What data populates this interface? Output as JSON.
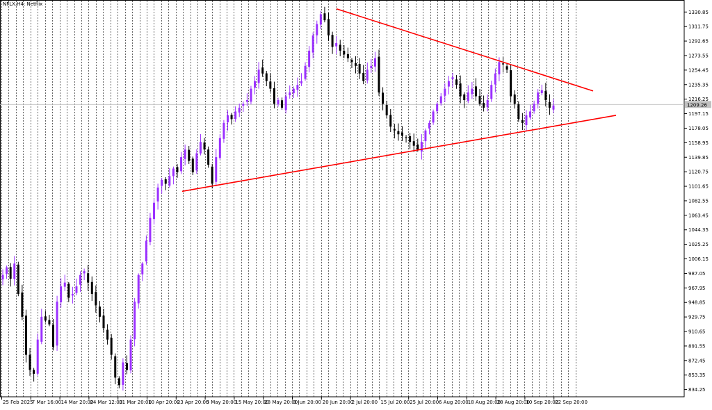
{
  "symbol": "NFLX,H4:",
  "symbol_desc": "Netflix",
  "colors": {
    "bull": "#9b30ff",
    "bear": "#000000",
    "trendline": "#ff0000",
    "grid": "#000000",
    "price_line": "#c0c0c0",
    "price_tag_bg": "#c0c0c0"
  },
  "chart_data": {
    "type": "candlestick",
    "title": "",
    "xlabel": "",
    "ylabel": "",
    "ylim": [
      824.75,
      1340.25
    ],
    "grid": "vertical dashed",
    "current_price": 1209.26,
    "y_ticks": [
      "1330.85",
      "1311.75",
      "1292.65",
      "1273.55",
      "1254.45",
      "1235.35",
      "1216.25",
      "1197.15",
      "1178.05",
      "1158.95",
      "1139.85",
      "1120.75",
      "1101.65",
      "1082.55",
      "1063.45",
      "1044.35",
      "1025.25",
      "1006.15",
      "987.05",
      "967.95",
      "948.85",
      "929.75",
      "910.65",
      "891.55",
      "872.45",
      "853.35",
      "834.25"
    ],
    "x_ticks": [
      "25 Feb 2025",
      "7 Mar 16:00",
      "14 Mar 20:00",
      "24 Mar 12:00",
      "31 Mar 20:00",
      "10 Apr 20:00",
      "23 Apr 20:00",
      "5 May 20:00",
      "15 May 20:00",
      "28 May 20:00",
      "9 Jun 20:00",
      "20 Jun 20:00",
      "2 Jul 20:00",
      "15 Jul 20:00",
      "25 Jul 20:00",
      "6 Aug 20:00",
      "18 Aug 20:00",
      "28 Aug 20:00",
      "10 Sep 20:00",
      "22 Sep 20:00"
    ],
    "closes": [
      985,
      995,
      980,
      1000,
      960,
      930,
      880,
      860,
      855,
      900,
      930,
      925,
      920,
      890,
      950,
      970,
      975,
      955,
      960,
      970,
      985,
      990,
      975,
      960,
      945,
      930,
      915,
      900,
      880,
      850,
      840,
      870,
      860,
      900,
      950,
      985,
      1000,
      1030,
      1060,
      1080,
      1100,
      1110,
      1105,
      1115,
      1125,
      1120,
      1140,
      1150,
      1135,
      1120,
      1145,
      1160,
      1150,
      1130,
      1105,
      1140,
      1165,
      1185,
      1195,
      1190,
      1200,
      1205,
      1210,
      1215,
      1230,
      1240,
      1255,
      1250,
      1240,
      1230,
      1210,
      1215,
      1205,
      1220,
      1225,
      1230,
      1235,
      1240,
      1260,
      1280,
      1300,
      1315,
      1328,
      1320,
      1300,
      1285,
      1290,
      1280,
      1275,
      1270,
      1265,
      1260,
      1250,
      1240,
      1255,
      1260,
      1270,
      1225,
      1210,
      1195,
      1180,
      1175,
      1170,
      1168,
      1165,
      1160,
      1155,
      1150,
      1160,
      1175,
      1185,
      1200,
      1210,
      1220,
      1230,
      1240,
      1245,
      1235,
      1220,
      1215,
      1225,
      1230,
      1220,
      1210,
      1205,
      1215,
      1235,
      1250,
      1265,
      1262,
      1255,
      1220,
      1210,
      1190,
      1185,
      1195,
      1200,
      1210,
      1225,
      1228,
      1215,
      1205,
      1208
    ],
    "trendlines": [
      {
        "from": [
          "20 Jun 20:00",
          1335
        ],
        "to": [
          "after 22 Sep",
          1227
        ]
      },
      {
        "from": [
          "23 Apr 20:00",
          1095
        ],
        "to": [
          "after 22 Sep",
          1195
        ]
      }
    ]
  }
}
